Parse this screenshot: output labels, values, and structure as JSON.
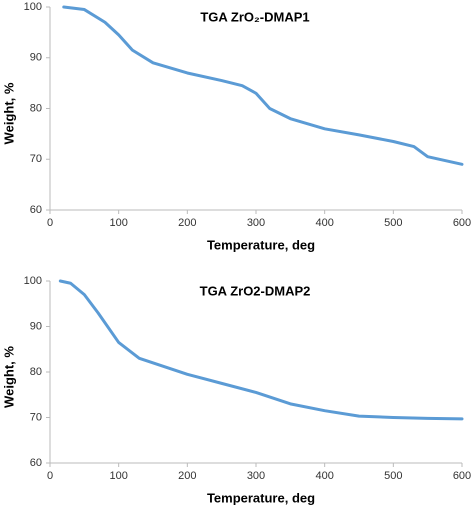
{
  "chart_data": [
    {
      "type": "line",
      "title": "TGA ZrO₂-DMAP1",
      "x_label": "Temperature, deg",
      "y_label": "Weight, %",
      "x": [
        20,
        50,
        80,
        100,
        120,
        150,
        200,
        250,
        280,
        300,
        320,
        350,
        400,
        450,
        500,
        530,
        550,
        600
      ],
      "values": [
        100,
        99.5,
        97,
        94.5,
        91.5,
        89,
        87,
        85.5,
        84.5,
        83,
        80,
        78,
        76,
        74.8,
        73.5,
        72.5,
        70.5,
        69
      ],
      "color": "#5b9bd5",
      "xlim": [
        0,
        600
      ],
      "xticks": [
        0,
        100,
        200,
        300,
        400,
        500,
        600
      ],
      "ylim": [
        60,
        100
      ],
      "yticks": [
        60,
        70,
        80,
        90,
        100
      ]
    },
    {
      "type": "line",
      "title": "TGA ZrO2-DMAP2",
      "x_label": "Temperature, deg",
      "y_label": "Weight, %",
      "x": [
        15,
        30,
        50,
        70,
        100,
        130,
        200,
        250,
        300,
        350,
        400,
        450,
        500,
        550,
        600
      ],
      "values": [
        100,
        99.5,
        97,
        93,
        86.5,
        83,
        79.5,
        77.5,
        75.5,
        73,
        71.5,
        70.3,
        70,
        69.8,
        69.7
      ],
      "color": "#5b9bd5",
      "xlim": [
        0,
        600
      ],
      "xticks": [
        0,
        100,
        200,
        300,
        400,
        500,
        600
      ],
      "ylim": [
        60,
        100
      ],
      "yticks": [
        60,
        70,
        80,
        90,
        100
      ]
    }
  ]
}
